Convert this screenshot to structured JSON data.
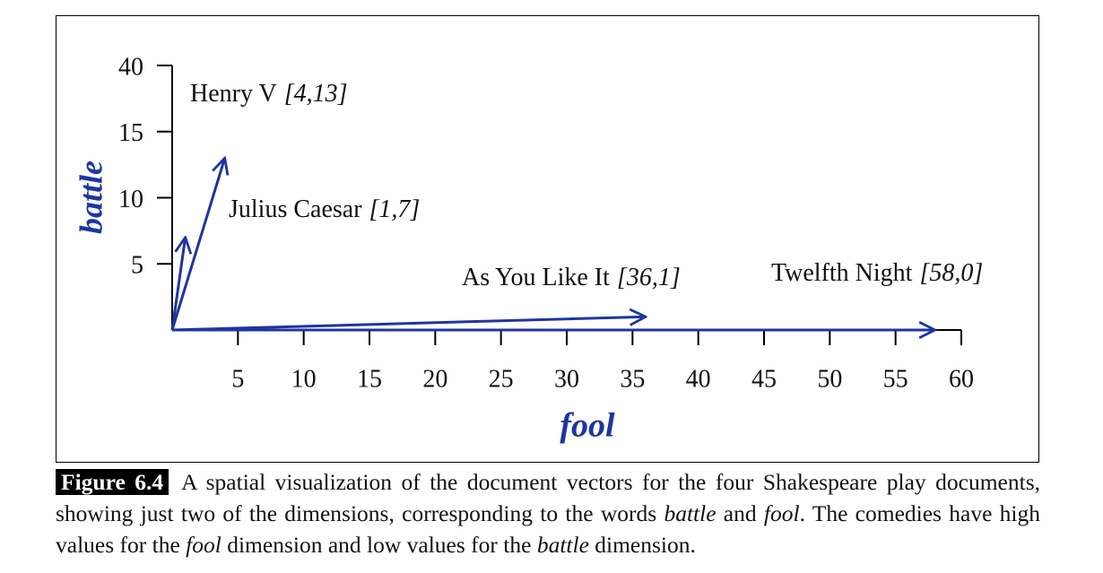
{
  "chart_data": {
    "type": "vector",
    "xlabel": "fool",
    "ylabel": "battle",
    "categories": [
      "Henry V",
      "Julius Caesar",
      "As You Like It",
      "Twelfth Night"
    ],
    "x": [
      4,
      1,
      36,
      58
    ],
    "values": [
      13,
      7,
      1,
      0
    ],
    "value_labels": [
      "[4,13]",
      "[1,7]",
      "[36,1]",
      "[58,0]"
    ],
    "color": "#1f35a0",
    "xlim": [
      0,
      60
    ],
    "xticks": [
      5,
      10,
      15,
      20,
      25,
      30,
      35,
      40,
      45,
      50,
      55,
      60
    ],
    "ylim": [
      0,
      40
    ],
    "yticks": [
      5,
      10,
      15,
      40
    ],
    "y_break": [
      15,
      40
    ]
  },
  "caption": {
    "label": "Figure 6.4",
    "parts": [
      "A spatial visualization of the document vectors for the four Shakespeare play documents, showing just two of the dimensions, corresponding to the words ",
      "battle",
      " and ",
      "fool",
      ". The comedies have high values for the ",
      "fool",
      " dimension and low values for the ",
      "battle",
      " dimension."
    ]
  }
}
